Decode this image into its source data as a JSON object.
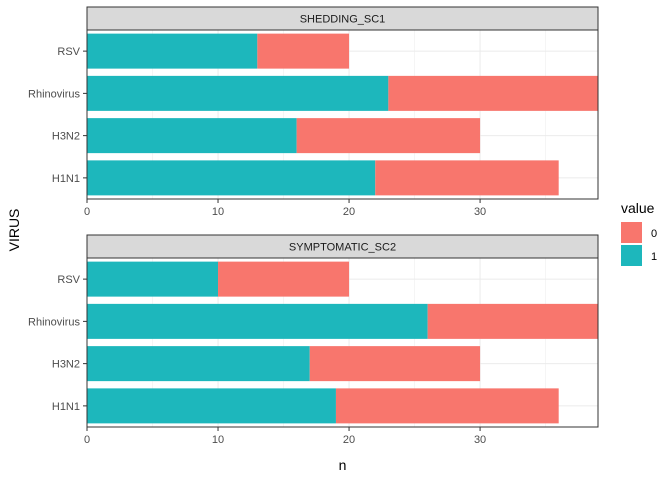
{
  "chart_data": {
    "type": "bar",
    "orientation": "horizontal",
    "stacked": true,
    "xlabel": "n",
    "ylabel": "VIRUS",
    "xlim": [
      0,
      39
    ],
    "x_ticks": [
      0,
      10,
      20,
      30
    ],
    "grid": true,
    "legend": {
      "title": "value",
      "placement": "right",
      "entries": [
        {
          "label": "0",
          "color": "#F8766D"
        },
        {
          "label": "1",
          "color": "#00BFC4"
        }
      ]
    },
    "colors": {
      "value_0": "#F8766D",
      "value_1": "#1DB7BC"
    },
    "facets": [
      {
        "title": "SHEDDING_SC1",
        "categories": [
          "RSV",
          "Rhinovirus",
          "H3N2",
          "H1N1"
        ],
        "series": [
          {
            "name": "1",
            "values": [
              13,
              23,
              16,
              22
            ]
          },
          {
            "name": "0",
            "values": [
              7,
              16,
              14,
              14
            ]
          }
        ]
      },
      {
        "title": "SYMPTOMATIC_SC2",
        "categories": [
          "RSV",
          "Rhinovirus",
          "H3N2",
          "H1N1"
        ],
        "series": [
          {
            "name": "1",
            "values": [
              10,
              26,
              17,
              19
            ]
          },
          {
            "name": "0",
            "values": [
              10,
              13,
              13,
              17
            ]
          }
        ]
      }
    ]
  }
}
